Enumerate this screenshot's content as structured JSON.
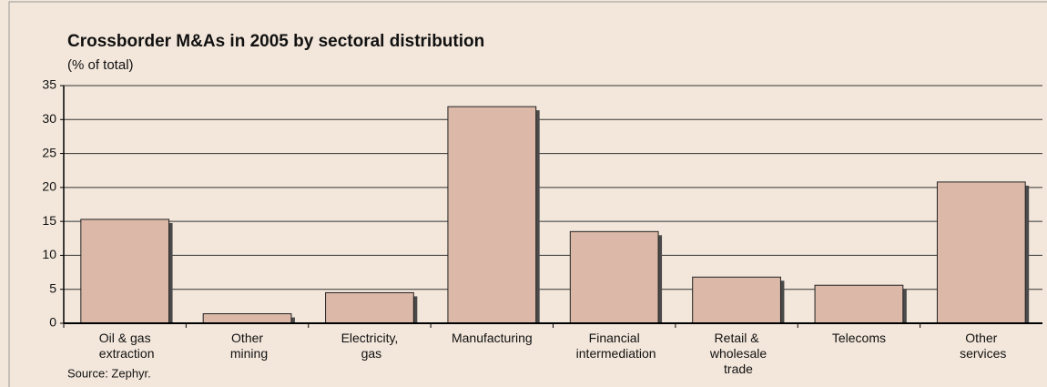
{
  "chart_data": {
    "type": "bar",
    "title": "Crossborder M&As in 2005 by sectoral distribution",
    "subtitle": "(% of total)",
    "source": "Source: Zephyr.",
    "categories": [
      "Oil & gas extraction",
      "Other mining",
      "Electricity, gas",
      "Manufacturing",
      "Financial intermediation",
      "Retail & wholesale trade",
      "Telecoms",
      "Other services"
    ],
    "values": [
      15.3,
      1.4,
      4.5,
      31.9,
      13.5,
      6.8,
      5.6,
      20.8
    ],
    "color": "#dbb8a8",
    "ylim": [
      0,
      35
    ],
    "yticks": [
      0,
      5,
      10,
      15,
      20,
      25,
      30,
      35
    ],
    "grid": true
  }
}
